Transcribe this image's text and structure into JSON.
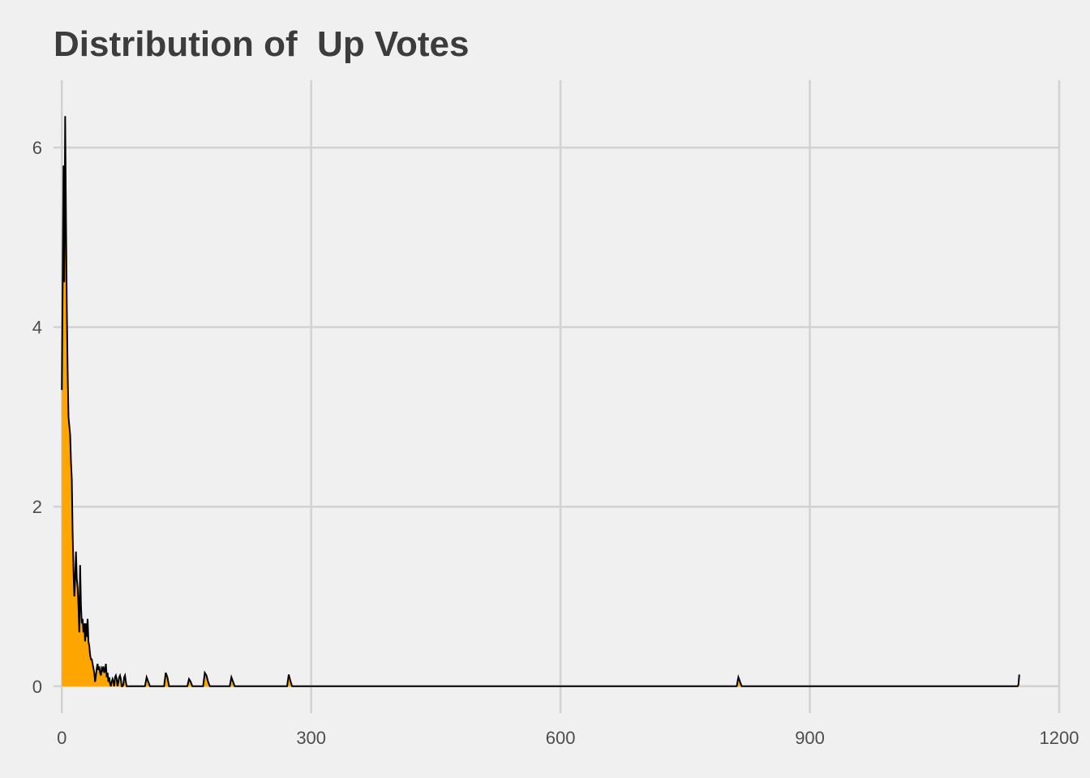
{
  "chart_data": {
    "type": "area",
    "title": "Distribution of  Up Votes",
    "xlabel": "",
    "ylabel": "",
    "xlim": [
      -10,
      1200
    ],
    "ylim": [
      -0.3,
      6.75
    ],
    "x_ticks": [
      0,
      300,
      600,
      900,
      1200
    ],
    "y_ticks": [
      0,
      2,
      4,
      6
    ],
    "grid": true,
    "legend": "none",
    "fill_color": "#FFA500",
    "line_color": "#000000",
    "x": [
      0,
      1,
      2,
      3,
      4,
      5,
      6,
      7,
      8,
      9,
      10,
      11,
      12,
      13,
      14,
      15,
      16,
      17,
      18,
      19,
      20,
      21,
      22,
      23,
      24,
      25,
      26,
      27,
      28,
      29,
      30,
      31,
      32,
      33,
      34,
      35,
      36,
      37,
      38,
      39,
      40,
      41,
      42,
      43,
      44,
      45,
      46,
      47,
      48,
      49,
      50,
      51,
      52,
      53,
      54,
      55,
      56,
      57,
      58,
      59,
      60,
      61,
      62,
      63,
      64,
      65,
      66,
      67,
      68,
      69,
      70,
      71,
      72,
      73,
      74,
      75,
      76,
      77,
      78,
      79,
      80,
      81,
      82,
      83,
      84,
      85,
      100,
      102,
      104,
      106,
      123,
      125,
      127,
      129,
      151,
      153,
      155,
      157,
      168,
      170,
      172,
      174,
      176,
      178,
      202,
      204,
      206,
      208,
      271,
      273,
      275,
      277,
      812,
      814,
      816,
      818,
      1149,
      1150,
      1151,
      1152
    ],
    "y": [
      3.3,
      4.5,
      5.8,
      4.5,
      6.35,
      5.2,
      4.2,
      3.5,
      3.0,
      2.9,
      2.8,
      2.5,
      2.3,
      1.7,
      1.3,
      1.0,
      1.2,
      1.5,
      1.2,
      1.1,
      0.9,
      0.6,
      1.35,
      0.9,
      0.7,
      0.75,
      0.6,
      0.7,
      0.5,
      0.7,
      0.55,
      0.75,
      0.5,
      0.45,
      0.35,
      0.3,
      0.3,
      0.25,
      0.2,
      0.15,
      0.05,
      0.12,
      0.2,
      0.25,
      0.18,
      0.22,
      0.15,
      0.12,
      0.2,
      0.18,
      0.22,
      0.15,
      0.18,
      0.25,
      0.1,
      0.15,
      0.05,
      0.1,
      0.03,
      0.0,
      0.05,
      0.08,
      0.05,
      0.0,
      0.1,
      0.12,
      0.08,
      0.0,
      0.05,
      0.1,
      0.12,
      0.08,
      0.0,
      0.0,
      0.02,
      0.1,
      0.12,
      0.05,
      0.0,
      0.0,
      0.0,
      0.0,
      0.0,
      0.0,
      0.0,
      0.0,
      0.0,
      0.1,
      0.05,
      0.0,
      0.0,
      0.15,
      0.1,
      0.0,
      0.0,
      0.08,
      0.05,
      0.0,
      0.0,
      0.0,
      0.15,
      0.12,
      0.05,
      0.0,
      0.0,
      0.1,
      0.05,
      0.0,
      0.0,
      0.13,
      0.06,
      0.0,
      0.0,
      0.1,
      0.05,
      0.0,
      0.0,
      0.0,
      0.02,
      0.13
    ]
  }
}
